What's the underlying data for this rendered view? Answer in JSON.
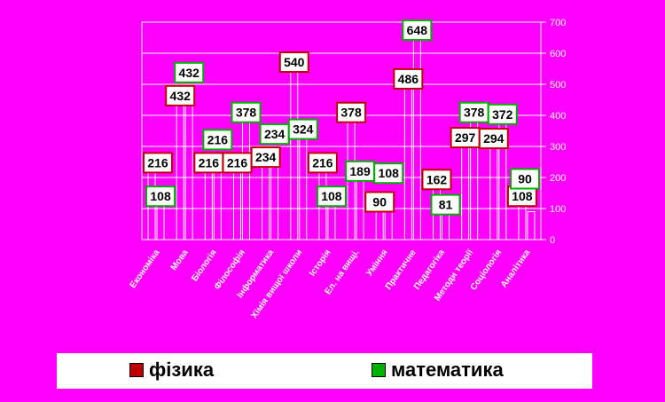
{
  "chart_data": {
    "type": "bar",
    "categories": [
      "Економіка",
      "Мова",
      "Біологія",
      "Філософія",
      "Інформатика",
      "Хімія вищої школи",
      "Історія",
      "Ел. на вищі.",
      "Уміння",
      "Практичне",
      "Педагогіка",
      "Методи теорії",
      "Соціологія",
      "Аналітика"
    ],
    "series": [
      {
        "name": "фізика",
        "values": [
          216,
          432,
          216,
          216,
          234,
          540,
          216,
          378,
          90,
          486,
          162,
          297,
          294,
          108
        ]
      },
      {
        "name": "математика",
        "values": [
          108,
          432,
          216,
          378,
          234,
          324,
          108,
          189,
          108,
          648,
          81,
          378,
          372,
          90
        ]
      }
    ],
    "ylim": [
      0,
      700
    ],
    "yticks": [
      0,
      100,
      200,
      300,
      400,
      500,
      600,
      700
    ],
    "legend_position": "bottom",
    "grid": true,
    "colors": {
      "background": "#ff00ff",
      "plot_area": "#ff00ff",
      "bar_outline": "#ffffff",
      "fizyka": "#c00000",
      "matematyka": "#00b000",
      "legend_bg": "#ffffff"
    }
  },
  "legend": {
    "fizyka_label": "фізика",
    "matematyka_label": "математика"
  }
}
